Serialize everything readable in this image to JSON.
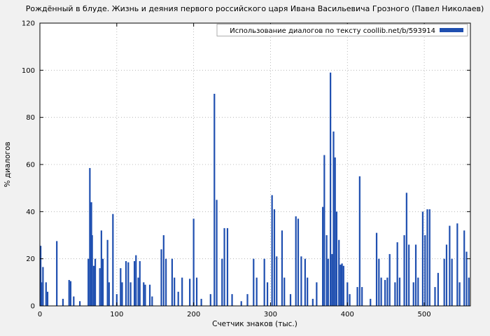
{
  "page": {
    "background": "#f1f1f1",
    "plot_background": "#ffffff"
  },
  "chart_data": {
    "type": "bar",
    "title": "Рождённый в блуде. Жизнь и деяния первого российского царя Ивана Васильевича Грозного (Павел Николаев)",
    "legend": "Использование диалогов по тексту coollib.net/b/593914",
    "xlabel": "Счетчик знаков (тыс.)",
    "ylabel": "% диалогов",
    "xlim": [
      0,
      560
    ],
    "ylim": [
      0,
      120
    ],
    "x_ticks": [
      0,
      100,
      200,
      300,
      400,
      500
    ],
    "y_ticks": [
      0,
      20,
      40,
      60,
      80,
      100,
      120
    ],
    "grid": true,
    "legend_position": "top-right",
    "bar_color": "#1f4fb0",
    "bars": [
      [
        1,
        25.5
      ],
      [
        2,
        10
      ],
      [
        4,
        16.5
      ],
      [
        8,
        10
      ],
      [
        10,
        6
      ],
      [
        22,
        27.5
      ],
      [
        30,
        3
      ],
      [
        38,
        11
      ],
      [
        40,
        10.5
      ],
      [
        44,
        4
      ],
      [
        52,
        2
      ],
      [
        63,
        20
      ],
      [
        65,
        58.5
      ],
      [
        67,
        44
      ],
      [
        68,
        30
      ],
      [
        70,
        17
      ],
      [
        72,
        20
      ],
      [
        78,
        16
      ],
      [
        80,
        32
      ],
      [
        82,
        20
      ],
      [
        88,
        28
      ],
      [
        90,
        10
      ],
      [
        95,
        39
      ],
      [
        100,
        5
      ],
      [
        105,
        16
      ],
      [
        107,
        10
      ],
      [
        112,
        19
      ],
      [
        115,
        18.5
      ],
      [
        118,
        10
      ],
      [
        123,
        19
      ],
      [
        125,
        21.5
      ],
      [
        128,
        12
      ],
      [
        130,
        19
      ],
      [
        135,
        10
      ],
      [
        137,
        9
      ],
      [
        143,
        9
      ],
      [
        146,
        4
      ],
      [
        158,
        24
      ],
      [
        161,
        30
      ],
      [
        164,
        20
      ],
      [
        172,
        20
      ],
      [
        175,
        12
      ],
      [
        180,
        6
      ],
      [
        185,
        12
      ],
      [
        195,
        11.5
      ],
      [
        200,
        37
      ],
      [
        204,
        12
      ],
      [
        210,
        3
      ],
      [
        222,
        5
      ],
      [
        227,
        90
      ],
      [
        230,
        45
      ],
      [
        237,
        20
      ],
      [
        240,
        33
      ],
      [
        244,
        33
      ],
      [
        250,
        5
      ],
      [
        262,
        2
      ],
      [
        270,
        5
      ],
      [
        278,
        20
      ],
      [
        282,
        12
      ],
      [
        292,
        20
      ],
      [
        296,
        10
      ],
      [
        302,
        47
      ],
      [
        305,
        41
      ],
      [
        308,
        21
      ],
      [
        315,
        32
      ],
      [
        318,
        12
      ],
      [
        326,
        5
      ],
      [
        333,
        38
      ],
      [
        336,
        37
      ],
      [
        340,
        21
      ],
      [
        345,
        20
      ],
      [
        348,
        12
      ],
      [
        355,
        3
      ],
      [
        360,
        10
      ],
      [
        368,
        42
      ],
      [
        370,
        64
      ],
      [
        373,
        30
      ],
      [
        375,
        20
      ],
      [
        378,
        99
      ],
      [
        380,
        22
      ],
      [
        382,
        74
      ],
      [
        384,
        63
      ],
      [
        386,
        40
      ],
      [
        389,
        28
      ],
      [
        391,
        17.5
      ],
      [
        393,
        18
      ],
      [
        395,
        17
      ],
      [
        400,
        10
      ],
      [
        403,
        5
      ],
      [
        413,
        8
      ],
      [
        416,
        55
      ],
      [
        419,
        8
      ],
      [
        430,
        3
      ],
      [
        438,
        31
      ],
      [
        441,
        20
      ],
      [
        444,
        12
      ],
      [
        449,
        11
      ],
      [
        452,
        12
      ],
      [
        455,
        22
      ],
      [
        462,
        10
      ],
      [
        465,
        27
      ],
      [
        468,
        12
      ],
      [
        474,
        30
      ],
      [
        477,
        48
      ],
      [
        480,
        26
      ],
      [
        486,
        10
      ],
      [
        489,
        26
      ],
      [
        492,
        12
      ],
      [
        498,
        40
      ],
      [
        501,
        30
      ],
      [
        504,
        41
      ],
      [
        507,
        41
      ],
      [
        514,
        8
      ],
      [
        518,
        14
      ],
      [
        526,
        20
      ],
      [
        529,
        26
      ],
      [
        533,
        34
      ],
      [
        536,
        20
      ],
      [
        543,
        35
      ],
      [
        546,
        10
      ],
      [
        552,
        32
      ],
      [
        555,
        23
      ],
      [
        558,
        12
      ]
    ]
  }
}
